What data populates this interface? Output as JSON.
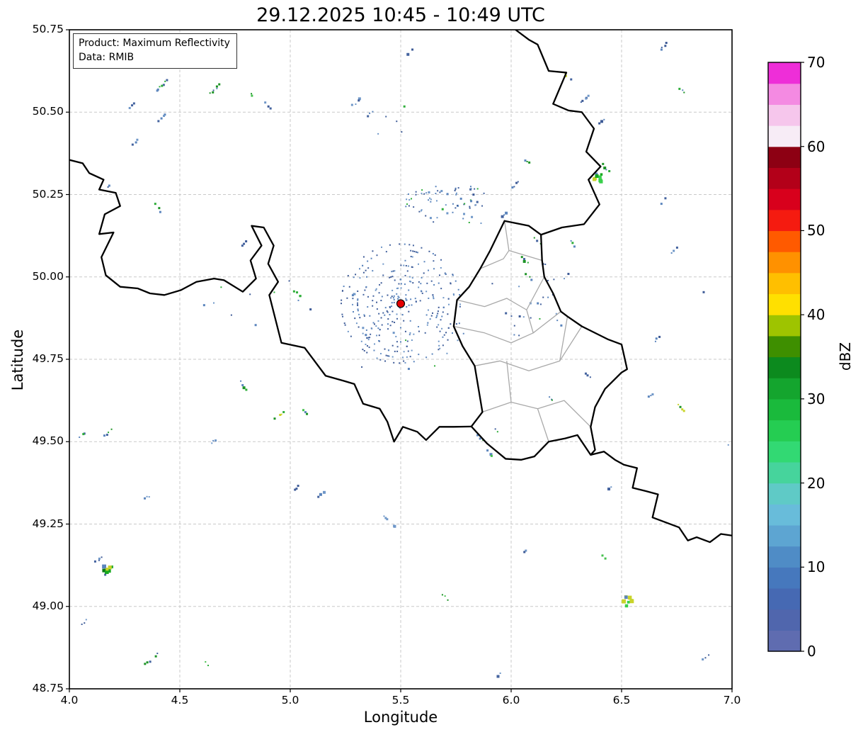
{
  "title": "29.12.2025 10:45 - 10:49 UTC",
  "info_box": {
    "product": "Product: Maximum Reflectivity",
    "source": "Data: RMIB"
  },
  "axes": {
    "xlabel": "Longitude",
    "ylabel": "Latitude",
    "xlim": [
      4.0,
      7.0
    ],
    "ylim": [
      48.75,
      50.75
    ],
    "xticks": [
      4.0,
      4.5,
      5.0,
      5.5,
      6.0,
      6.5,
      7.0
    ],
    "xtick_labels": [
      "4.0",
      "4.5",
      "5.0",
      "5.5",
      "6.0",
      "6.5",
      "7.0"
    ],
    "yticks": [
      48.75,
      49.0,
      49.25,
      49.5,
      49.75,
      50.0,
      50.25,
      50.5,
      50.75
    ],
    "ytick_labels": [
      "48.75",
      "49.00",
      "49.25",
      "49.50",
      "49.75",
      "50.00",
      "50.25",
      "50.50",
      "50.75"
    ],
    "grid_color": "#c9c9c9",
    "grid_style": "dashed"
  },
  "colorbar": {
    "label": "dBZ",
    "vmin": 0,
    "vmax": 70,
    "ticks": [
      0,
      10,
      20,
      30,
      40,
      50,
      60,
      70
    ],
    "tick_labels": [
      "0",
      "10",
      "20",
      "30",
      "40",
      "50",
      "60",
      "70"
    ],
    "colors": [
      "#5f6cb0",
      "#5066ad",
      "#4669b3",
      "#4678bd",
      "#4f8cc6",
      "#5da5d2",
      "#68bcda",
      "#5fcac6",
      "#46d49c",
      "#32d973",
      "#25cd52",
      "#1aba3c",
      "#14a52e",
      "#0c8a1e",
      "#3e8f00",
      "#9ec400",
      "#ffe000",
      "#ffbf00",
      "#ff9100",
      "#ff5a00",
      "#f51b10",
      "#d8001c",
      "#b30019",
      "#8d0013",
      "#f7ecf6",
      "#f6c6ec",
      "#f48ae2",
      "#ee2ed8"
    ]
  },
  "chart_data": {
    "type": "heatmap",
    "subtype": "weather-radar-maximum-reflectivity-map",
    "title": "29.12.2025 10:45 - 10:49 UTC",
    "product": "Maximum Reflectivity",
    "source": "RMIB",
    "units": "dBZ",
    "extent": {
      "lon": [
        4.0,
        7.0
      ],
      "lat": [
        48.75,
        50.75
      ]
    },
    "legend_position": "right-colorbar",
    "description": "Largely echo-free scene with scattered weak clutter/clear-air echoes (mostly 0-35 dBZ, a few small green cells 20-35 dBZ and rare yellow pixels ~40 dBZ). Concentric speckled clutter rings surround the radar site marked by a red dot at lon 5.5, lat 49.92. Thick black national borders (BE/FR/DE/LU) and thin gray Luxembourg district borders are overlaid.",
    "radar_site": {
      "lon": 5.5,
      "lat": 49.919,
      "marker": "filled red circle with black edge",
      "marker_color": "#e50000"
    },
    "echo_palettes": {
      "b": [
        "#44639f",
        "#5b85bd",
        "#3d5a96",
        "#6f97c8"
      ],
      "g": [
        "#2fae3a",
        "#1d9426",
        "#47c14f",
        "#5b85bd"
      ],
      "m": [
        "#44639f",
        "#2fae3a",
        "#5b85bd",
        "#1d9426"
      ],
      "y": [
        "#2fae3a",
        "#c9d42a",
        "#1d9426",
        "#44639f"
      ],
      "G": [
        "#17a81f",
        "#0c7a12",
        "#39d04b",
        "#5b85bd",
        "#c9d42a"
      ]
    },
    "echo_streaks": [
      [
        4.42,
        50.58,
        22,
        135,
        "m"
      ],
      [
        4.66,
        50.57,
        18,
        135,
        "m"
      ],
      [
        4.82,
        50.555,
        10,
        45,
        "g"
      ],
      [
        4.9,
        50.52,
        9,
        45,
        "b"
      ],
      [
        4.28,
        50.52,
        8,
        135,
        "b"
      ],
      [
        4.42,
        50.485,
        14,
        135,
        "b"
      ],
      [
        4.3,
        50.41,
        9,
        135,
        "b"
      ],
      [
        4.4,
        50.21,
        13,
        50,
        "g"
      ],
      [
        4.18,
        50.28,
        8,
        135,
        "b"
      ],
      [
        4.79,
        50.1,
        8,
        135,
        "b"
      ],
      [
        5.3,
        50.53,
        14,
        135,
        "b"
      ],
      [
        5.36,
        50.495,
        9,
        135,
        "b"
      ],
      [
        5.54,
        50.68,
        10,
        135,
        "b"
      ],
      [
        6.26,
        50.605,
        16,
        45,
        "y"
      ],
      [
        6.335,
        50.54,
        16,
        135,
        "b"
      ],
      [
        6.41,
        50.47,
        9,
        135,
        "b"
      ],
      [
        6.43,
        50.33,
        12,
        50,
        "m"
      ],
      [
        6.69,
        50.7,
        12,
        135,
        "b"
      ],
      [
        6.77,
        50.57,
        12,
        50,
        "g"
      ],
      [
        6.69,
        50.23,
        9,
        135,
        "b"
      ],
      [
        6.74,
        50.08,
        10,
        135,
        "b"
      ],
      [
        6.02,
        50.28,
        12,
        135,
        "b"
      ],
      [
        6.07,
        50.35,
        8,
        45,
        "g"
      ],
      [
        6.28,
        50.1,
        10,
        45,
        "m"
      ],
      [
        6.25,
        50.0,
        8,
        135,
        "b"
      ],
      [
        6.06,
        50.05,
        12,
        45,
        "m"
      ],
      [
        6.08,
        50.0,
        8,
        45,
        "g"
      ],
      [
        5.29,
        49.95,
        10,
        135,
        "b"
      ],
      [
        5.03,
        49.95,
        9,
        45,
        "g"
      ],
      [
        4.81,
        49.94,
        8,
        135,
        "b"
      ],
      [
        4.79,
        49.67,
        14,
        50,
        "m"
      ],
      [
        4.95,
        49.58,
        16,
        135,
        "y"
      ],
      [
        5.065,
        49.59,
        10,
        50,
        "g"
      ],
      [
        4.65,
        49.5,
        8,
        135,
        "b"
      ],
      [
        4.18,
        49.53,
        16,
        135,
        "m"
      ],
      [
        4.06,
        49.52,
        10,
        135,
        "m"
      ],
      [
        4.13,
        49.14,
        16,
        135,
        "b"
      ],
      [
        4.175,
        49.11,
        14,
        135,
        "y"
      ],
      [
        4.37,
        48.84,
        22,
        135,
        "y"
      ],
      [
        4.62,
        48.83,
        10,
        45,
        "g"
      ],
      [
        4.07,
        48.95,
        9,
        135,
        "b"
      ],
      [
        5.43,
        49.27,
        7,
        45,
        "b"
      ],
      [
        5.7,
        49.03,
        10,
        45,
        "g"
      ],
      [
        5.94,
        48.79,
        9,
        135,
        "b"
      ],
      [
        6.07,
        49.17,
        8,
        135,
        "b"
      ],
      [
        6.42,
        49.15,
        10,
        45,
        "g"
      ],
      [
        6.45,
        49.36,
        8,
        135,
        "b"
      ],
      [
        6.89,
        48.85,
        16,
        135,
        "b"
      ],
      [
        6.99,
        49.5,
        10,
        135,
        "b"
      ],
      [
        6.63,
        49.64,
        8,
        135,
        "b"
      ],
      [
        6.775,
        49.6,
        16,
        50,
        "y"
      ],
      [
        6.66,
        49.81,
        8,
        135,
        "b"
      ],
      [
        6.22,
        49.86,
        8,
        45,
        "g"
      ],
      [
        6.18,
        49.63,
        8,
        45,
        "g"
      ],
      [
        5.91,
        49.46,
        14,
        50,
        "g"
      ],
      [
        5.94,
        49.53,
        11,
        50,
        "m"
      ],
      [
        5.86,
        49.51,
        9,
        50,
        "g"
      ],
      [
        5.14,
        49.34,
        10,
        135,
        "b"
      ],
      [
        5.03,
        49.36,
        8,
        135,
        "b"
      ],
      [
        6.12,
        50.11,
        10,
        45,
        "m"
      ],
      [
        5.97,
        50.19,
        8,
        135,
        "b"
      ],
      [
        4.35,
        49.33,
        7,
        135,
        "b"
      ],
      [
        5.47,
        49.245,
        6,
        45,
        "b"
      ],
      [
        6.35,
        49.7,
        7,
        45,
        "b"
      ],
      [
        6.86,
        49.95,
        8,
        135,
        "b"
      ]
    ],
    "echo_blobs": [
      [
        6.39,
        50.305,
        16
      ],
      [
        6.53,
        49.015,
        14
      ],
      [
        4.17,
        49.115,
        10
      ]
    ],
    "speckle_fields": [
      [
        5.52,
        50.16,
        5.88,
        50.275,
        70
      ],
      [
        5.3,
        49.7,
        5.8,
        49.87,
        28
      ],
      [
        5.9,
        49.82,
        6.25,
        50.06,
        22
      ],
      [
        4.6,
        49.85,
        5.12,
        50.0,
        10
      ],
      [
        5.35,
        50.42,
        5.65,
        50.55,
        5
      ]
    ],
    "clutter_rings": {
      "radii": [
        16,
        22,
        28,
        34,
        40,
        47,
        54,
        61,
        68,
        76,
        84
      ],
      "density": 0.5
    },
    "borders": {
      "national": [
        [
          [
            4.0,
            50.355
          ],
          [
            4.06,
            50.345
          ],
          [
            4.09,
            50.315
          ],
          [
            4.155,
            50.295
          ],
          [
            4.135,
            50.265
          ],
          [
            4.21,
            50.255
          ],
          [
            4.23,
            50.215
          ],
          [
            4.16,
            50.19
          ],
          [
            4.135,
            50.13
          ],
          [
            4.2,
            50.135
          ],
          [
            4.145,
            50.06
          ],
          [
            4.165,
            50.005
          ],
          [
            4.23,
            49.97
          ],
          [
            4.31,
            49.965
          ],
          [
            4.365,
            49.95
          ],
          [
            4.43,
            49.945
          ],
          [
            4.505,
            49.96
          ],
          [
            4.575,
            49.985
          ],
          [
            4.655,
            49.995
          ],
          [
            4.7,
            49.99
          ],
          [
            4.785,
            49.955
          ],
          [
            4.845,
            49.995
          ],
          [
            4.82,
            50.05
          ],
          [
            4.87,
            50.095
          ],
          [
            4.825,
            50.155
          ],
          [
            4.88,
            50.15
          ],
          [
            4.925,
            50.095
          ],
          [
            4.9,
            50.04
          ],
          [
            4.945,
            49.985
          ],
          [
            4.905,
            49.945
          ],
          [
            4.96,
            49.8
          ],
          [
            5.065,
            49.785
          ],
          [
            5.16,
            49.7
          ],
          [
            5.24,
            49.685
          ],
          [
            5.29,
            49.675
          ],
          [
            5.33,
            49.615
          ],
          [
            5.405,
            49.6
          ],
          [
            5.44,
            49.56
          ],
          [
            5.47,
            49.5
          ],
          [
            5.51,
            49.545
          ],
          [
            5.575,
            49.53
          ],
          [
            5.615,
            49.505
          ],
          [
            5.675,
            49.545
          ],
          [
            5.74,
            49.545
          ],
          [
            5.82,
            49.546
          ]
        ],
        [
          [
            5.82,
            49.546
          ],
          [
            5.89,
            49.495
          ],
          [
            5.975,
            49.448
          ],
          [
            6.045,
            49.445
          ],
          [
            6.105,
            49.455
          ],
          [
            6.17,
            49.5
          ],
          [
            6.245,
            49.51
          ],
          [
            6.3,
            49.52
          ],
          [
            6.36,
            49.46
          ],
          [
            6.38,
            49.475
          ],
          [
            6.36,
            49.545
          ],
          [
            6.38,
            49.605
          ],
          [
            6.425,
            49.66
          ],
          [
            6.5,
            49.71
          ],
          [
            6.525,
            49.72
          ],
          [
            6.5,
            49.795
          ],
          [
            6.44,
            49.81
          ],
          [
            6.32,
            49.85
          ],
          [
            6.255,
            49.88
          ],
          [
            6.225,
            49.895
          ],
          [
            6.19,
            49.95
          ],
          [
            6.15,
            50.0
          ],
          [
            6.14,
            50.05
          ],
          [
            6.135,
            50.128
          ],
          [
            6.08,
            50.155
          ],
          [
            5.97,
            50.17
          ],
          [
            5.905,
            50.08
          ],
          [
            5.86,
            50.025
          ],
          [
            5.81,
            49.97
          ],
          [
            5.755,
            49.93
          ],
          [
            5.74,
            49.85
          ],
          [
            5.78,
            49.79
          ],
          [
            5.835,
            49.73
          ],
          [
            5.87,
            49.59
          ],
          [
            5.82,
            49.546
          ]
        ],
        [
          [
            6.02,
            50.75
          ],
          [
            6.08,
            50.72
          ],
          [
            6.12,
            50.705
          ],
          [
            6.17,
            50.625
          ],
          [
            6.25,
            50.62
          ],
          [
            6.19,
            50.525
          ],
          [
            6.26,
            50.505
          ],
          [
            6.32,
            50.5
          ],
          [
            6.375,
            50.45
          ],
          [
            6.34,
            50.38
          ],
          [
            6.405,
            50.335
          ],
          [
            6.35,
            50.295
          ],
          [
            6.4,
            50.22
          ],
          [
            6.33,
            50.16
          ],
          [
            6.23,
            50.15
          ],
          [
            6.135,
            50.128
          ]
        ],
        [
          [
            6.36,
            49.46
          ],
          [
            6.42,
            49.47
          ],
          [
            6.47,
            49.445
          ],
          [
            6.51,
            49.43
          ],
          [
            6.57,
            49.42
          ],
          [
            6.55,
            49.36
          ],
          [
            6.61,
            49.35
          ],
          [
            6.665,
            49.34
          ],
          [
            6.64,
            49.27
          ],
          [
            6.7,
            49.255
          ],
          [
            6.76,
            49.24
          ],
          [
            6.8,
            49.2
          ],
          [
            6.84,
            49.21
          ],
          [
            6.9,
            49.195
          ],
          [
            6.95,
            49.22
          ],
          [
            7.0,
            49.215
          ]
        ]
      ],
      "internal": [
        [
          [
            5.97,
            50.17
          ],
          [
            5.99,
            50.08
          ],
          [
            6.14,
            50.05
          ]
        ],
        [
          [
            5.86,
            50.025
          ],
          [
            5.965,
            50.055
          ],
          [
            5.99,
            50.08
          ]
        ],
        [
          [
            5.755,
            49.93
          ],
          [
            5.88,
            49.91
          ],
          [
            5.98,
            49.935
          ],
          [
            6.07,
            49.9
          ],
          [
            6.15,
            50.0
          ]
        ],
        [
          [
            6.07,
            49.9
          ],
          [
            6.1,
            49.83
          ],
          [
            6.225,
            49.895
          ]
        ],
        [
          [
            5.74,
            49.85
          ],
          [
            5.88,
            49.83
          ],
          [
            6.0,
            49.8
          ],
          [
            6.1,
            49.83
          ]
        ],
        [
          [
            5.835,
            49.73
          ],
          [
            5.95,
            49.745
          ],
          [
            6.08,
            49.715
          ],
          [
            6.22,
            49.745
          ],
          [
            6.32,
            49.85
          ]
        ],
        [
          [
            5.87,
            49.59
          ],
          [
            6.0,
            49.62
          ],
          [
            6.12,
            49.6
          ],
          [
            6.24,
            49.625
          ],
          [
            6.36,
            49.545
          ]
        ],
        [
          [
            6.0,
            49.62
          ],
          [
            5.98,
            49.745
          ]
        ],
        [
          [
            6.12,
            49.6
          ],
          [
            6.17,
            49.5
          ]
        ],
        [
          [
            6.22,
            49.745
          ],
          [
            6.255,
            49.88
          ]
        ]
      ]
    }
  }
}
